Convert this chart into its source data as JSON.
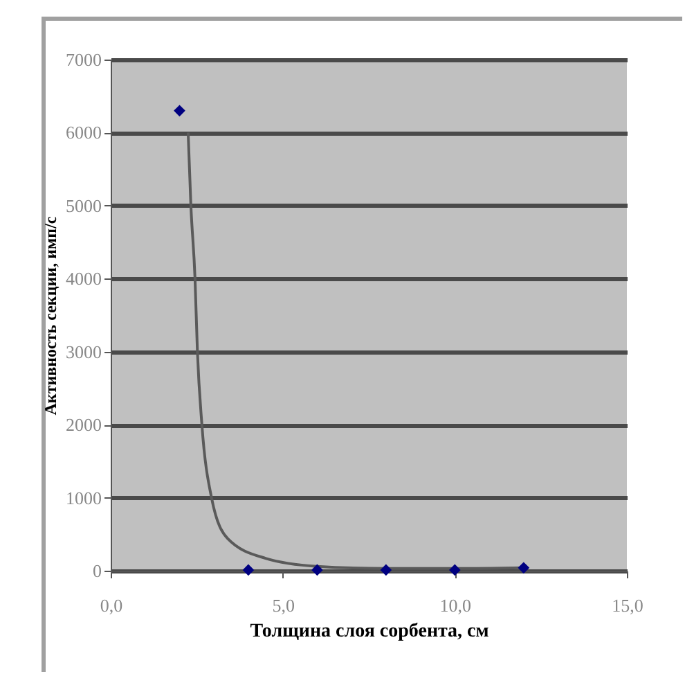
{
  "chart_data": {
    "type": "scatter",
    "xlabel": "Толщина слоя сорбента, см",
    "ylabel": "Активность секции, имп/с",
    "xlim": [
      0,
      15
    ],
    "ylim": [
      0,
      7000
    ],
    "xticks": [
      {
        "value": 0,
        "label": "0,0"
      },
      {
        "value": 5,
        "label": "5,0"
      },
      {
        "value": 10,
        "label": "10,0"
      },
      {
        "value": 15,
        "label": "15,0"
      }
    ],
    "yticks": [
      0,
      1000,
      2000,
      3000,
      4000,
      5000,
      6000,
      7000
    ],
    "grid": "y",
    "marker": "diamond",
    "series": [
      {
        "color": "#000080",
        "x": [
          2,
          4,
          6,
          8,
          10,
          12
        ],
        "values": [
          6300,
          10,
          10,
          10,
          10,
          40
        ]
      },
      {
        "type": "line",
        "color": "#5a5a5a",
        "marker": "none",
        "x": [
          2.25,
          2.33,
          2.45,
          2.52,
          2.65,
          2.93,
          3.4,
          4.5,
          6,
          8,
          10,
          12
        ],
        "values": [
          6000,
          5000,
          4000,
          3000,
          2000,
          1000,
          440,
          170,
          60,
          30,
          30,
          40
        ]
      }
    ]
  }
}
